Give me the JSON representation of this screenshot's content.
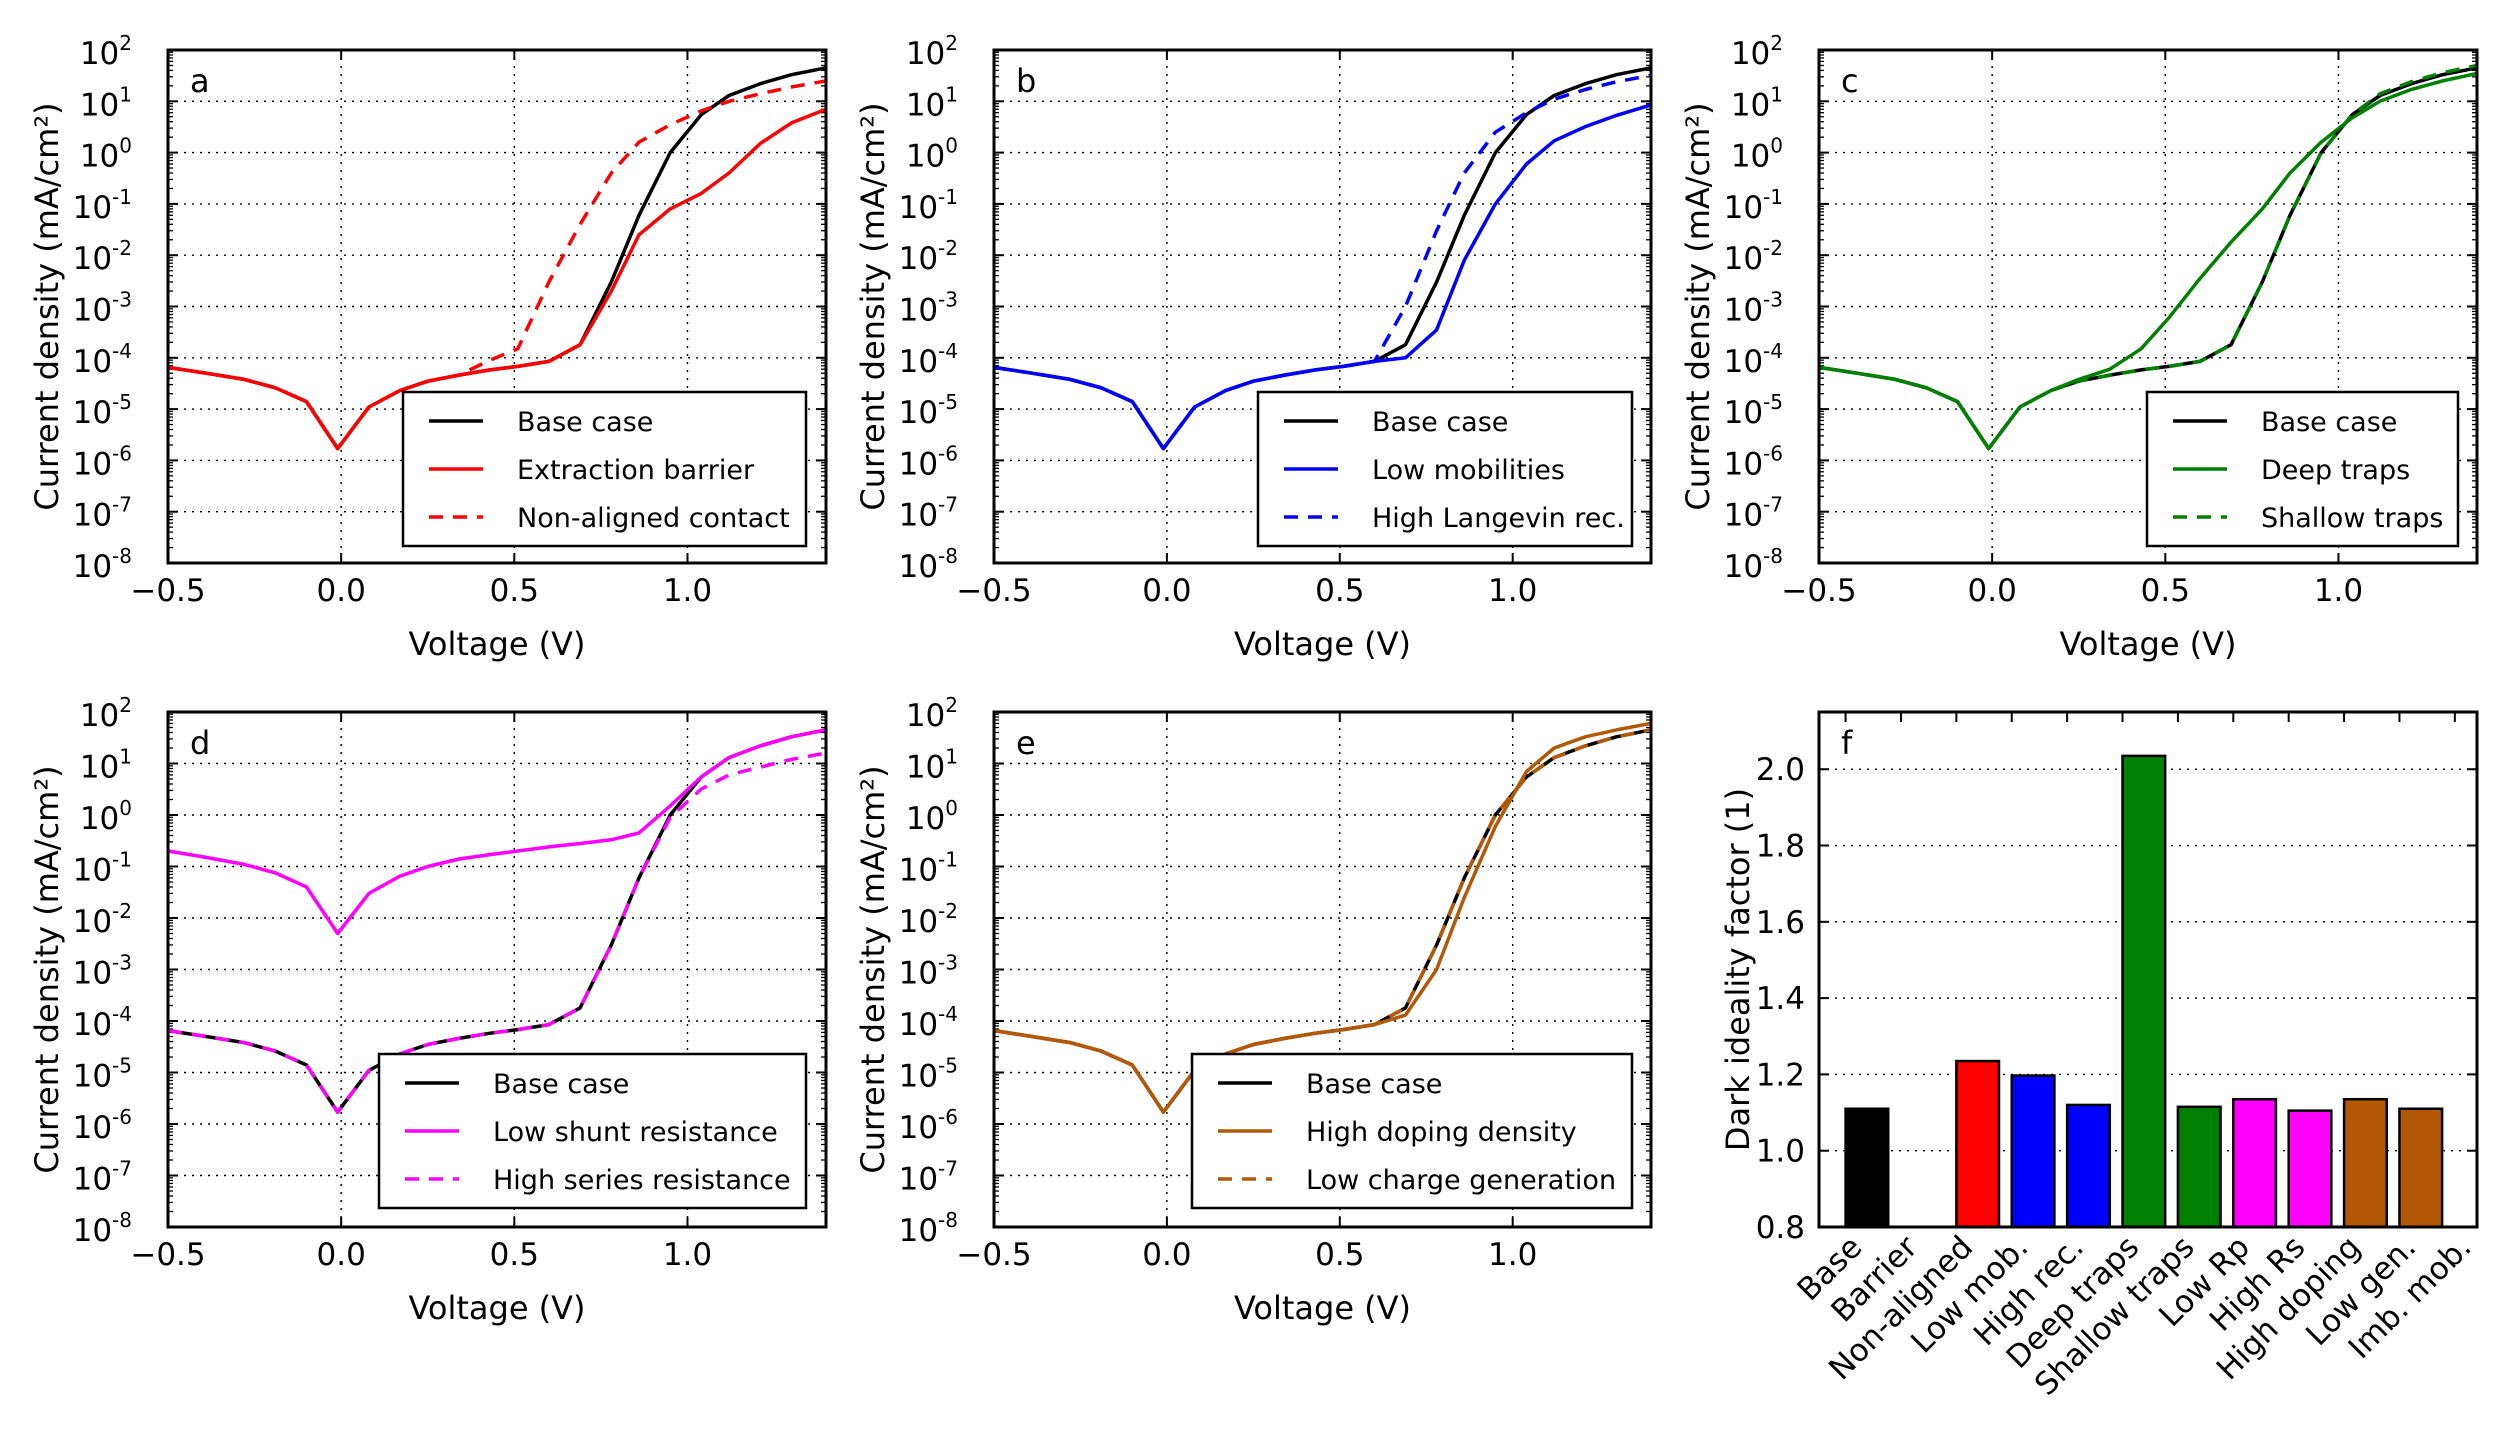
{
  "chart_data": [
    {
      "type": "line",
      "panel_label": "a",
      "xlabel": "Voltage (V)",
      "ylabel": "Current density (mA/cm²)",
      "xlim": [
        -0.5,
        1.4
      ],
      "ylim": [
        1e-08,
        100
      ],
      "yscale": "log",
      "grid": true,
      "legend": "lower-right",
      "xticks": [
        -0.5,
        0.0,
        0.5,
        1.0
      ],
      "xtick_labels": [
        "−0.5",
        "0.0",
        "0.5",
        "1.0"
      ],
      "ytick_exponents": [
        -8,
        -7,
        -6,
        -5,
        -4,
        -3,
        -2,
        -1,
        0,
        1,
        2
      ],
      "ytick_base": "10",
      "x": [
        -0.5,
        -0.39,
        -0.28,
        -0.19,
        -0.1,
        -0.01,
        0.08,
        0.17,
        0.25,
        0.34,
        0.43,
        0.51,
        0.6,
        0.69,
        0.78,
        0.86,
        0.95,
        1.04,
        1.12,
        1.21,
        1.3,
        1.4
      ],
      "series": [
        {
          "name": "Base case",
          "color": "#000000",
          "dash": false,
          "values": [
            6.5e-05,
            5e-05,
            3.8e-05,
            2.6e-05,
            1.4e-05,
            1.7e-06,
            1.1e-05,
            2.3e-05,
            3.5e-05,
            4.6e-05,
            5.8e-05,
            6.8e-05,
            8.5e-05,
            0.00018,
            0.003,
            0.06,
            1,
            5.5,
            13,
            22,
            33,
            45
          ]
        },
        {
          "name": "Extraction barrier",
          "color": "#ff0000",
          "dash": false,
          "values": [
            6.5e-05,
            5e-05,
            3.8e-05,
            2.6e-05,
            1.4e-05,
            1.7e-06,
            1.1e-05,
            2.3e-05,
            3.5e-05,
            4.6e-05,
            5.8e-05,
            6.8e-05,
            8.5e-05,
            0.00018,
            0.002,
            0.025,
            0.08,
            0.16,
            0.4,
            1.5,
            3.8,
            7
          ]
        },
        {
          "name": "Non-aligned contact",
          "color": "#ff0000",
          "dash": true,
          "values": [
            6.5e-05,
            5e-05,
            3.8e-05,
            2.6e-05,
            1.4e-05,
            1.7e-06,
            1.1e-05,
            2.3e-05,
            3.5e-05,
            4.6e-05,
            9e-05,
            0.00015,
            0.003,
            0.04,
            0.4,
            1.6,
            3.5,
            6.5,
            10,
            14,
            19,
            25
          ]
        }
      ]
    },
    {
      "type": "line",
      "panel_label": "b",
      "xlabel": "Voltage (V)",
      "ylabel": "Current density (mA/cm²)",
      "xlim": [
        -0.5,
        1.4
      ],
      "ylim": [
        1e-08,
        100
      ],
      "yscale": "log",
      "grid": true,
      "legend": "lower-right",
      "xticks": [
        -0.5,
        0.0,
        0.5,
        1.0
      ],
      "xtick_labels": [
        "−0.5",
        "0.0",
        "0.5",
        "1.0"
      ],
      "ytick_exponents": [
        -8,
        -7,
        -6,
        -5,
        -4,
        -3,
        -2,
        -1,
        0,
        1,
        2
      ],
      "ytick_base": "10",
      "x": [
        -0.5,
        -0.39,
        -0.28,
        -0.19,
        -0.1,
        -0.01,
        0.08,
        0.17,
        0.25,
        0.34,
        0.43,
        0.51,
        0.6,
        0.69,
        0.78,
        0.86,
        0.95,
        1.04,
        1.12,
        1.21,
        1.3,
        1.4
      ],
      "series": [
        {
          "name": "Base case",
          "color": "#000000",
          "dash": false,
          "values": [
            6.5e-05,
            5e-05,
            3.8e-05,
            2.6e-05,
            1.4e-05,
            1.7e-06,
            1.1e-05,
            2.3e-05,
            3.5e-05,
            4.6e-05,
            5.8e-05,
            6.8e-05,
            8.5e-05,
            0.00018,
            0.003,
            0.06,
            1,
            5.5,
            13,
            22,
            33,
            45
          ]
        },
        {
          "name": "Low mobilities",
          "color": "#0000ff",
          "dash": false,
          "values": [
            6.5e-05,
            5e-05,
            3.8e-05,
            2.6e-05,
            1.4e-05,
            1.7e-06,
            1.1e-05,
            2.3e-05,
            3.5e-05,
            4.6e-05,
            5.8e-05,
            6.8e-05,
            8.5e-05,
            0.0001,
            0.00035,
            0.008,
            0.1,
            0.6,
            1.7,
            3.2,
            5.3,
            8.5
          ]
        },
        {
          "name": "High Langevin rec.",
          "color": "#0000ff",
          "dash": true,
          "values": [
            6.5e-05,
            5e-05,
            3.8e-05,
            2.6e-05,
            1.4e-05,
            1.7e-06,
            1.1e-05,
            2.3e-05,
            3.5e-05,
            4.6e-05,
            5.8e-05,
            6.8e-05,
            8.5e-05,
            0.001,
            0.03,
            0.4,
            2.5,
            6,
            11,
            17,
            24,
            32
          ]
        }
      ]
    },
    {
      "type": "line",
      "panel_label": "c",
      "xlabel": "Voltage (V)",
      "ylabel": "Current density (mA/cm²)",
      "xlim": [
        -0.5,
        1.4
      ],
      "ylim": [
        1e-08,
        100
      ],
      "yscale": "log",
      "grid": true,
      "legend": "lower-right",
      "xticks": [
        -0.5,
        0.0,
        0.5,
        1.0
      ],
      "xtick_labels": [
        "−0.5",
        "0.0",
        "0.5",
        "1.0"
      ],
      "ytick_exponents": [
        -8,
        -7,
        -6,
        -5,
        -4,
        -3,
        -2,
        -1,
        0,
        1,
        2
      ],
      "ytick_base": "10",
      "x": [
        -0.5,
        -0.39,
        -0.28,
        -0.19,
        -0.1,
        -0.01,
        0.08,
        0.17,
        0.25,
        0.34,
        0.43,
        0.51,
        0.6,
        0.69,
        0.78,
        0.86,
        0.95,
        1.04,
        1.12,
        1.21,
        1.3,
        1.4
      ],
      "series": [
        {
          "name": "Base case",
          "color": "#000000",
          "dash": false,
          "values": [
            6.5e-05,
            5e-05,
            3.8e-05,
            2.6e-05,
            1.4e-05,
            1.7e-06,
            1.1e-05,
            2.3e-05,
            3.5e-05,
            4.6e-05,
            5.8e-05,
            6.8e-05,
            8.5e-05,
            0.00018,
            0.003,
            0.06,
            1,
            5.5,
            13,
            22,
            33,
            45
          ]
        },
        {
          "name": "Deep traps",
          "color": "#008000",
          "dash": false,
          "values": [
            6.5e-05,
            5e-05,
            3.8e-05,
            2.6e-05,
            1.4e-05,
            1.7e-06,
            1.1e-05,
            2.3e-05,
            3.8e-05,
            6e-05,
            0.00015,
            0.0006,
            0.0035,
            0.018,
            0.08,
            0.4,
            1.6,
            4.8,
            10,
            17,
            25,
            35
          ]
        },
        {
          "name": "Shallow traps",
          "color": "#008000",
          "dash": true,
          "values": [
            6.5e-05,
            5e-05,
            3.8e-05,
            2.6e-05,
            1.4e-05,
            1.7e-06,
            1.1e-05,
            2.3e-05,
            3.5e-05,
            4.6e-05,
            5.8e-05,
            6.8e-05,
            8.5e-05,
            0.00018,
            0.003,
            0.06,
            1,
            5.5,
            14,
            24,
            36,
            50
          ]
        }
      ]
    },
    {
      "type": "line",
      "panel_label": "d",
      "xlabel": "Voltage (V)",
      "ylabel": "Current density (mA/cm²)",
      "xlim": [
        -0.5,
        1.4
      ],
      "ylim": [
        1e-08,
        100
      ],
      "yscale": "log",
      "grid": true,
      "legend": "lower-right",
      "xticks": [
        -0.5,
        0.0,
        0.5,
        1.0
      ],
      "xtick_labels": [
        "−0.5",
        "0.0",
        "0.5",
        "1.0"
      ],
      "ytick_exponents": [
        -8,
        -7,
        -6,
        -5,
        -4,
        -3,
        -2,
        -1,
        0,
        1,
        2
      ],
      "ytick_base": "10",
      "x": [
        -0.5,
        -0.39,
        -0.28,
        -0.19,
        -0.1,
        -0.01,
        0.08,
        0.17,
        0.25,
        0.34,
        0.43,
        0.51,
        0.6,
        0.69,
        0.78,
        0.86,
        0.95,
        1.04,
        1.12,
        1.21,
        1.3,
        1.4
      ],
      "series": [
        {
          "name": "Base case",
          "color": "#000000",
          "dash": false,
          "values": [
            6.5e-05,
            5e-05,
            3.8e-05,
            2.6e-05,
            1.4e-05,
            1.7e-06,
            1.1e-05,
            2.3e-05,
            3.5e-05,
            4.6e-05,
            5.8e-05,
            6.8e-05,
            8.5e-05,
            0.00018,
            0.003,
            0.06,
            1,
            5.5,
            13,
            22,
            33,
            45
          ]
        },
        {
          "name": "Low shunt resistance",
          "color": "#ff00ff",
          "dash": false,
          "values": [
            0.2,
            0.15,
            0.11,
            0.075,
            0.04,
            0.005,
            0.03,
            0.065,
            0.1,
            0.14,
            0.17,
            0.2,
            0.24,
            0.28,
            0.33,
            0.45,
            1.5,
            5.5,
            13,
            22,
            33,
            45
          ]
        },
        {
          "name": "High series resistance",
          "color": "#ff00ff",
          "dash": true,
          "values": [
            6.5e-05,
            5e-05,
            3.8e-05,
            2.6e-05,
            1.4e-05,
            1.7e-06,
            1.1e-05,
            2.3e-05,
            3.5e-05,
            4.6e-05,
            5.8e-05,
            6.8e-05,
            8.5e-05,
            0.00018,
            0.003,
            0.06,
            0.9,
            3.2,
            6,
            8.5,
            12,
            16
          ]
        }
      ]
    },
    {
      "type": "line",
      "panel_label": "e",
      "xlabel": "Voltage (V)",
      "ylabel": "Current density (mA/cm²)",
      "xlim": [
        -0.5,
        1.4
      ],
      "ylim": [
        1e-08,
        100
      ],
      "yscale": "log",
      "grid": true,
      "legend": "lower-right",
      "xticks": [
        -0.5,
        0.0,
        0.5,
        1.0
      ],
      "xtick_labels": [
        "−0.5",
        "0.0",
        "0.5",
        "1.0"
      ],
      "ytick_exponents": [
        -8,
        -7,
        -6,
        -5,
        -4,
        -3,
        -2,
        -1,
        0,
        1,
        2
      ],
      "ytick_base": "10",
      "x": [
        -0.5,
        -0.39,
        -0.28,
        -0.19,
        -0.1,
        -0.01,
        0.08,
        0.17,
        0.25,
        0.34,
        0.43,
        0.51,
        0.6,
        0.69,
        0.78,
        0.86,
        0.95,
        1.04,
        1.12,
        1.21,
        1.3,
        1.4
      ],
      "series": [
        {
          "name": "Base case",
          "color": "#000000",
          "dash": false,
          "values": [
            6.5e-05,
            5e-05,
            3.8e-05,
            2.6e-05,
            1.4e-05,
            1.7e-06,
            1.1e-05,
            2.3e-05,
            3.5e-05,
            4.6e-05,
            5.8e-05,
            6.8e-05,
            8.5e-05,
            0.00018,
            0.003,
            0.06,
            1,
            5.5,
            13,
            22,
            33,
            45
          ]
        },
        {
          "name": "High doping density",
          "color": "#b35806",
          "dash": false,
          "values": [
            6.5e-05,
            5e-05,
            3.8e-05,
            2.6e-05,
            1.4e-05,
            1.7e-06,
            1.1e-05,
            2.3e-05,
            3.5e-05,
            4.6e-05,
            5.8e-05,
            6.8e-05,
            8.5e-05,
            0.00013,
            0.001,
            0.025,
            0.6,
            7,
            20,
            33,
            45,
            60
          ]
        },
        {
          "name": "Low charge generation",
          "color": "#b35806",
          "dash": true,
          "values": [
            6.5e-05,
            5e-05,
            3.8e-05,
            2.6e-05,
            1.4e-05,
            1.7e-06,
            1.1e-05,
            2.3e-05,
            3.5e-05,
            4.6e-05,
            5.8e-05,
            6.8e-05,
            8.5e-05,
            0.00018,
            0.003,
            0.06,
            1,
            5.5,
            13,
            22,
            33,
            45
          ]
        }
      ]
    },
    {
      "type": "bar",
      "panel_label": "f",
      "xlabel": "",
      "ylabel": "Dark ideality factor (1)",
      "ylim": [
        0.8,
        2.15
      ],
      "grid": true,
      "yticks": [
        0.8,
        1.0,
        1.2,
        1.4,
        1.6,
        1.8,
        2.0
      ],
      "ytick_labels": [
        "0.8",
        "1.0",
        "1.2",
        "1.4",
        "1.6",
        "1.8",
        "2.0"
      ],
      "categories": [
        "Base",
        "Barrier",
        "Non-aligned",
        "Low mob.",
        "High rec.",
        "Deep traps",
        "Shallow traps",
        "Low Rp",
        "High Rs",
        "High doping",
        "Low gen.",
        "Imb. mob."
      ],
      "values": [
        1.11,
        null,
        1.235,
        1.197,
        1.12,
        2.035,
        1.115,
        1.135,
        1.105,
        1.135,
        1.11,
        null
      ],
      "colors": [
        "#000000",
        "#ff0000",
        "#ff0000",
        "#0000ff",
        "#0000ff",
        "#008000",
        "#008000",
        "#ff00ff",
        "#ff00ff",
        "#b35806",
        "#b35806",
        "#b35806"
      ]
    }
  ]
}
